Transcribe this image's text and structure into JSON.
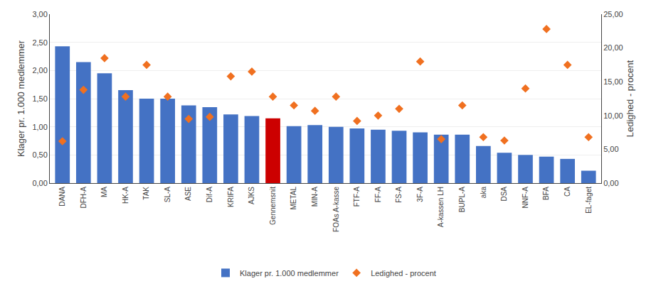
{
  "chart_data": {
    "type": "bar",
    "categories": [
      "DANA",
      "DFH-A",
      "MA",
      "HK-A",
      "TAK",
      "SL-A",
      "ASE",
      "Dif-A",
      "KRIFA",
      "AJKS",
      "Gennemsnit",
      "METAL",
      "MIN-A",
      "FOAs A-kasse",
      "FTF-A",
      "FF-A",
      "FS-A",
      "3F-A",
      "A-kassen LH",
      "BUPL-A",
      "aka",
      "DSA",
      "NNF-A",
      "BFA",
      "CA",
      "EL-faget"
    ],
    "series": [
      {
        "name": "Klager pr. 1.000 medlemmer",
        "type": "bar",
        "color": "#4472c4",
        "colors": [
          "#4472c4",
          "#4472c4",
          "#4472c4",
          "#4472c4",
          "#4472c4",
          "#4472c4",
          "#4472c4",
          "#4472c4",
          "#4472c4",
          "#4472c4",
          "#cc0000",
          "#4472c4",
          "#4472c4",
          "#4472c4",
          "#4472c4",
          "#4472c4",
          "#4472c4",
          "#4472c4",
          "#4472c4",
          "#4472c4",
          "#4472c4",
          "#4472c4",
          "#4472c4",
          "#4472c4",
          "#4472c4",
          "#4472c4"
        ],
        "values": [
          2.43,
          2.15,
          1.95,
          1.65,
          1.5,
          1.5,
          1.38,
          1.35,
          1.22,
          1.19,
          1.15,
          1.01,
          1.03,
          1.0,
          0.97,
          0.95,
          0.93,
          0.9,
          0.86,
          0.86,
          0.66,
          0.54,
          0.5,
          0.47,
          0.43,
          0.22
        ]
      },
      {
        "name": "Ledighed - procent",
        "type": "scatter",
        "marker": "diamond",
        "color": "#f07020",
        "axis": "y2",
        "values": [
          6.2,
          13.8,
          18.5,
          12.8,
          17.5,
          12.8,
          9.5,
          9.8,
          15.8,
          16.5,
          12.8,
          11.5,
          10.7,
          12.8,
          9.2,
          10.0,
          11.0,
          18.0,
          6.5,
          11.5,
          6.8,
          6.3,
          14.0,
          22.8,
          17.5,
          6.8
        ]
      }
    ],
    "ylabel": "Klager pr. 1.000 medlemmer",
    "y2label": "Ledighed - procent",
    "ylim": [
      0.0,
      3.0
    ],
    "yticks": [
      {
        "value": 0.0,
        "label": "0,00"
      },
      {
        "value": 0.5,
        "label": "0,50"
      },
      {
        "value": 1.0,
        "label": "1,00"
      },
      {
        "value": 1.5,
        "label": "1,50"
      },
      {
        "value": 2.0,
        "label": "2,00"
      },
      {
        "value": 2.5,
        "label": "2,50"
      },
      {
        "value": 3.0,
        "label": "3,00"
      }
    ],
    "y2lim": [
      0.0,
      25.0
    ],
    "y2ticks": [
      {
        "value": 0.0,
        "label": "0,00"
      },
      {
        "value": 5.0,
        "label": "5,00"
      },
      {
        "value": 10.0,
        "label": "10,00"
      },
      {
        "value": 15.0,
        "label": "15,00"
      },
      {
        "value": 20.0,
        "label": "20,00"
      },
      {
        "value": 25.0,
        "label": "25,00"
      }
    ],
    "grid": true,
    "legend": "bottom"
  }
}
